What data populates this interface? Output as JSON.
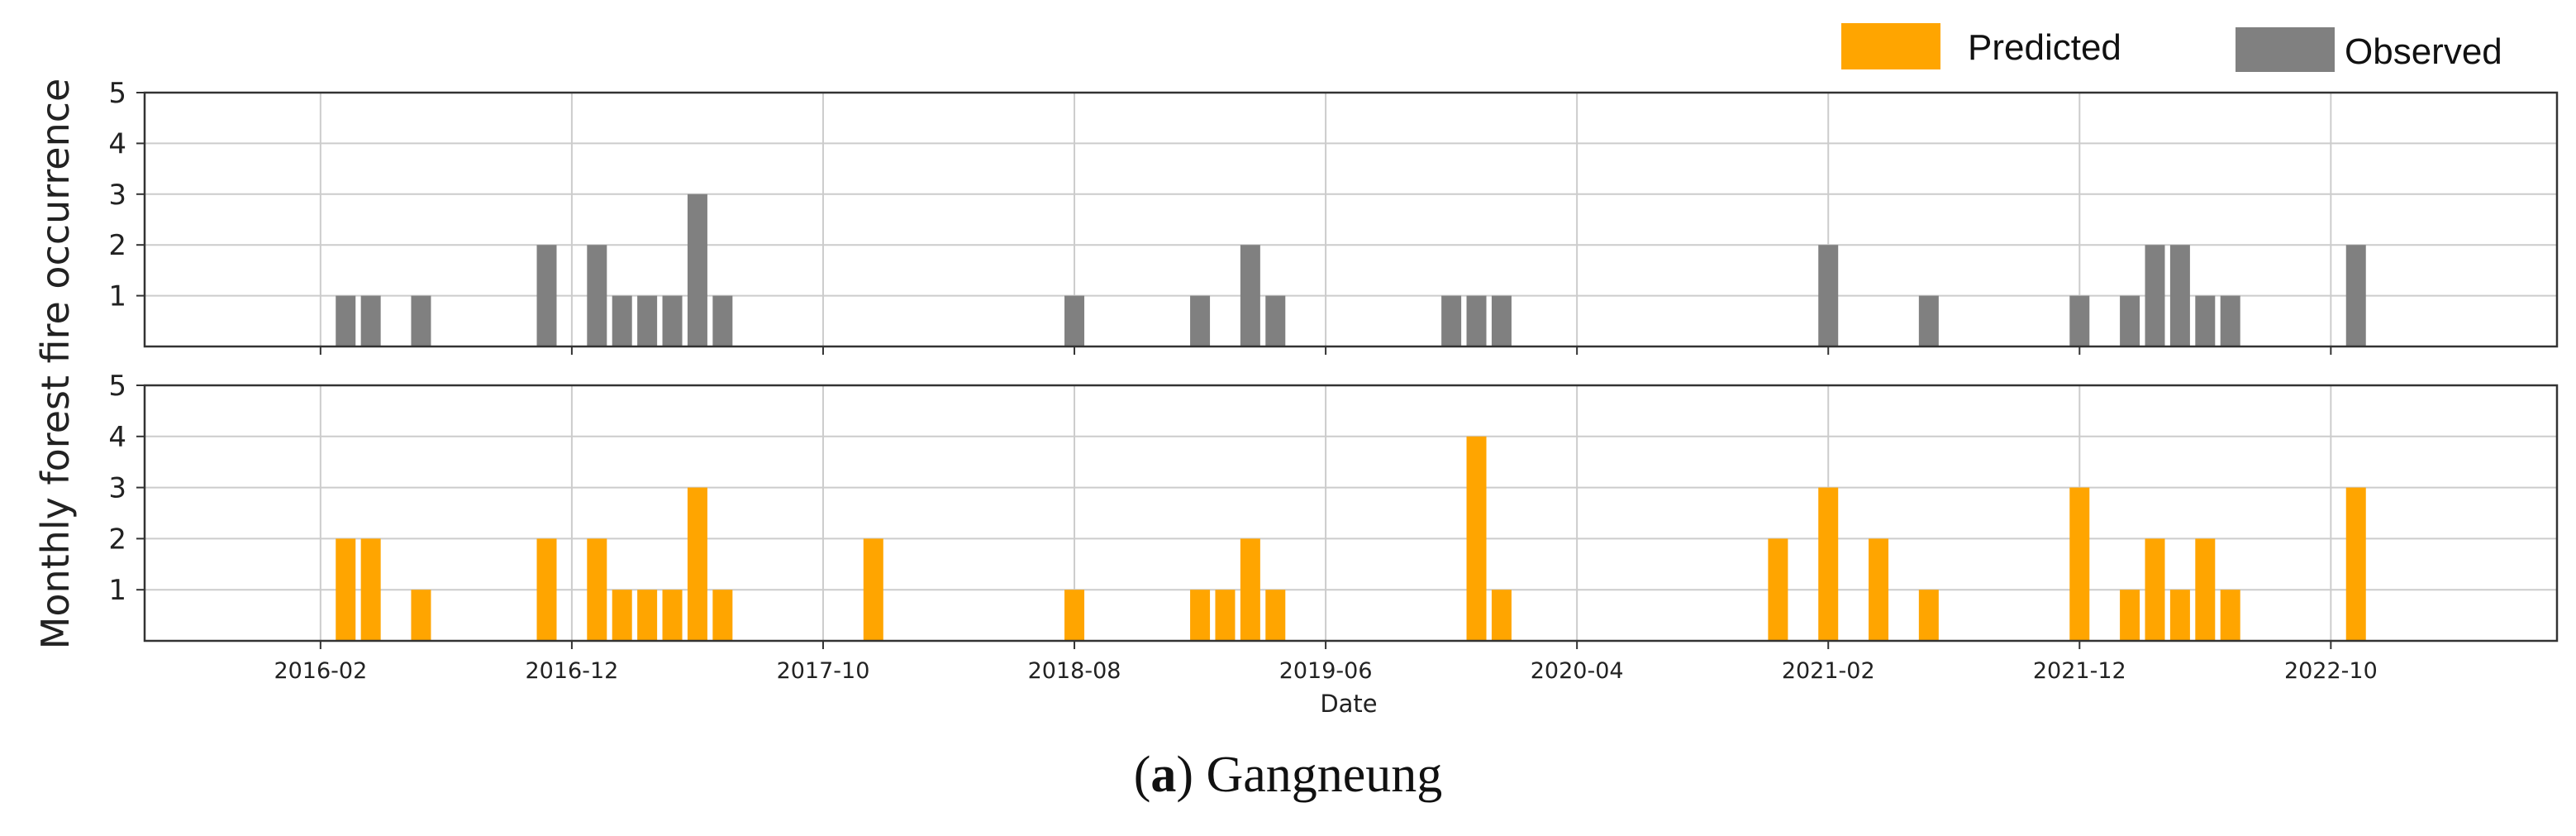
{
  "legend": {
    "predicted_label": "Predicted",
    "observed_label": "Observed"
  },
  "colors": {
    "observed": "#808080",
    "predicted": "#FFA500",
    "grid": "#cccccc",
    "axis": "#333333"
  },
  "caption": {
    "label": "a",
    "open": "(",
    "close": ")",
    "text": " Gangneung"
  },
  "chart_data": {
    "type": "bar",
    "ylabel": "Monthly forest fire occurrence",
    "xlabel": "Date",
    "x_ticks": [
      "2016-02",
      "2016-12",
      "2017-10",
      "2018-08",
      "2019-06",
      "2020-04",
      "2021-02",
      "2021-12",
      "2022-10"
    ],
    "xlim": [
      "2015-07",
      "2023-07"
    ],
    "ylim": [
      0,
      5
    ],
    "y_ticks": [
      1,
      2,
      3,
      4,
      5
    ],
    "grid": true,
    "legend_position": "top-right",
    "panels": [
      {
        "series": "Observed",
        "points": [
          {
            "date": "2016-03",
            "value": 1
          },
          {
            "date": "2016-04",
            "value": 1
          },
          {
            "date": "2016-06",
            "value": 1
          },
          {
            "date": "2016-11",
            "value": 2
          },
          {
            "date": "2017-01",
            "value": 2
          },
          {
            "date": "2017-02",
            "value": 1
          },
          {
            "date": "2017-03",
            "value": 1
          },
          {
            "date": "2017-04",
            "value": 1
          },
          {
            "date": "2017-05",
            "value": 3
          },
          {
            "date": "2017-06",
            "value": 1
          },
          {
            "date": "2018-08",
            "value": 1
          },
          {
            "date": "2019-01",
            "value": 1
          },
          {
            "date": "2019-03",
            "value": 2
          },
          {
            "date": "2019-04",
            "value": 1
          },
          {
            "date": "2019-11",
            "value": 1
          },
          {
            "date": "2019-12",
            "value": 1
          },
          {
            "date": "2020-01",
            "value": 1
          },
          {
            "date": "2021-02",
            "value": 2
          },
          {
            "date": "2021-06",
            "value": 1
          },
          {
            "date": "2021-12",
            "value": 1
          },
          {
            "date": "2022-02",
            "value": 1
          },
          {
            "date": "2022-03",
            "value": 2
          },
          {
            "date": "2022-04",
            "value": 2
          },
          {
            "date": "2022-05",
            "value": 1
          },
          {
            "date": "2022-06",
            "value": 1
          },
          {
            "date": "2022-11",
            "value": 2
          }
        ]
      },
      {
        "series": "Predicted",
        "points": [
          {
            "date": "2016-03",
            "value": 2
          },
          {
            "date": "2016-04",
            "value": 2
          },
          {
            "date": "2016-06",
            "value": 1
          },
          {
            "date": "2016-11",
            "value": 2
          },
          {
            "date": "2017-01",
            "value": 2
          },
          {
            "date": "2017-02",
            "value": 1
          },
          {
            "date": "2017-03",
            "value": 1
          },
          {
            "date": "2017-04",
            "value": 1
          },
          {
            "date": "2017-05",
            "value": 3
          },
          {
            "date": "2017-06",
            "value": 1
          },
          {
            "date": "2017-12",
            "value": 2
          },
          {
            "date": "2018-08",
            "value": 1
          },
          {
            "date": "2019-01",
            "value": 1
          },
          {
            "date": "2019-02",
            "value": 1
          },
          {
            "date": "2019-03",
            "value": 2
          },
          {
            "date": "2019-04",
            "value": 1
          },
          {
            "date": "2019-12",
            "value": 4
          },
          {
            "date": "2020-01",
            "value": 1
          },
          {
            "date": "2020-12",
            "value": 2
          },
          {
            "date": "2021-02",
            "value": 3
          },
          {
            "date": "2021-04",
            "value": 2
          },
          {
            "date": "2021-06",
            "value": 1
          },
          {
            "date": "2021-12",
            "value": 3
          },
          {
            "date": "2022-02",
            "value": 1
          },
          {
            "date": "2022-03",
            "value": 2
          },
          {
            "date": "2022-04",
            "value": 1
          },
          {
            "date": "2022-05",
            "value": 2
          },
          {
            "date": "2022-06",
            "value": 1
          },
          {
            "date": "2022-11",
            "value": 3
          }
        ]
      }
    ]
  }
}
